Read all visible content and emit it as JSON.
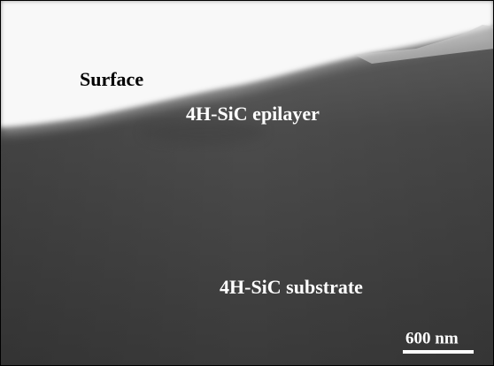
{
  "image": {
    "labels": [
      "Surface",
      "4H-SiC epilayer",
      "4H-SiC substrate"
    ],
    "scale_bar": {
      "label": "600 nm"
    }
  }
}
